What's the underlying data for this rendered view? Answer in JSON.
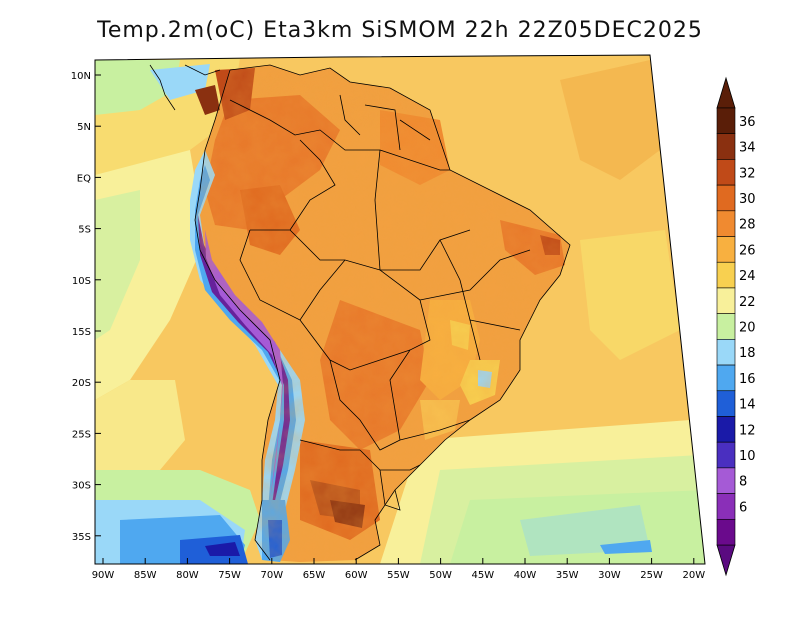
{
  "title": "Temp.2m(oC) Eta3km SiSMOM 22h 22Z05DEC2025",
  "lat_ticks": [
    "10N",
    "5N",
    "EQ",
    "5S",
    "10S",
    "15S",
    "20S",
    "25S",
    "30S",
    "35S"
  ],
  "lon_ticks": [
    "90W",
    "85W",
    "80W",
    "75W",
    "70W",
    "65W",
    "60W",
    "55W",
    "50W",
    "45W",
    "40W",
    "35W",
    "30W",
    "25W",
    "20W"
  ],
  "colorbar": {
    "labels": [
      "6",
      "8",
      "10",
      "12",
      "14",
      "16",
      "18",
      "20",
      "22",
      "24",
      "26",
      "28",
      "30",
      "32",
      "34",
      "36"
    ],
    "colors": [
      "#6a0a8c",
      "#8a2fb8",
      "#a55ad6",
      "#4a2fc0",
      "#1a1aa8",
      "#1f5fd8",
      "#4fa8f0",
      "#9ad8f8",
      "#c8f0a0",
      "#f8f09a",
      "#f8d050",
      "#f8b040",
      "#f08a30",
      "#e06a20",
      "#c04a18",
      "#8a3010",
      "#5a1e08"
    ],
    "over_color": "#5a1e08",
    "under_color": "#5a0a80"
  }
}
